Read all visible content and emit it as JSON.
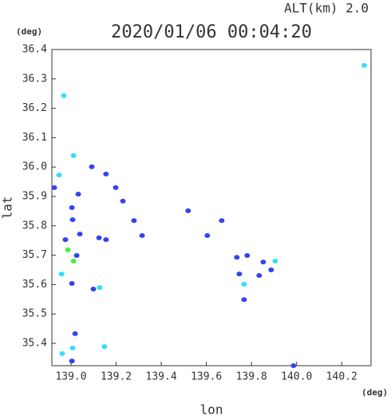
{
  "chart_data": {
    "type": "scatter",
    "title": "2020/01/06 00:04:20",
    "subtitle": "ALT(km) 2.0",
    "x_label": "lon",
    "y_label": "lat",
    "x_unit": "(deg)",
    "y_unit": "(deg)",
    "xlim": [
      138.915,
      140.33
    ],
    "ylim": [
      35.324,
      36.4
    ],
    "xticks": [
      {
        "value": 139.0,
        "label": "139.0"
      },
      139.2,
      139.4,
      139.6,
      139.8,
      {
        "value": 140.0,
        "label": "140.0"
      },
      140.2
    ],
    "yticks": [
      {
        "value": 35.4,
        "label": "35.4"
      },
      35.5,
      35.6,
      35.7,
      35.8,
      35.9,
      {
        "value": 36.0,
        "label": "36.0"
      },
      36.1,
      36.2,
      36.3,
      36.4
    ],
    "series": [
      {
        "color": "#3344ee",
        "x": [
          139.092,
          138.926,
          139.032,
          139.004,
          139.007,
          139.039,
          138.975,
          139.025,
          139.004,
          139.099,
          139.124,
          139.155,
          139.23,
          139.279,
          139.315,
          139.519,
          139.604,
          139.668,
          139.735,
          139.746,
          139.767,
          139.781,
          139.852,
          139.887,
          139.834,
          139.018,
          139.004,
          139.986,
          139.155,
          139.198
        ],
        "y": [
          36.001,
          35.93,
          35.908,
          35.862,
          35.821,
          35.772,
          35.753,
          35.699,
          35.604,
          35.585,
          35.759,
          35.753,
          35.884,
          35.818,
          35.767,
          35.851,
          35.767,
          35.818,
          35.693,
          35.636,
          35.549,
          35.699,
          35.677,
          35.65,
          35.631,
          35.433,
          35.34,
          35.324,
          35.976,
          35.93
        ]
      },
      {
        "color": "#33ddff",
        "x": [
          138.968,
          139.011,
          138.947,
          138.958,
          139.127,
          139.767,
          139.905,
          139.007,
          138.961,
          139.148,
          140.3
        ],
        "y": [
          36.243,
          36.039,
          35.973,
          35.636,
          35.59,
          35.601,
          35.68,
          35.384,
          35.365,
          35.389,
          36.346
        ]
      },
      {
        "color": "#44ee44",
        "x": [
          138.986,
          139.011
        ],
        "y": [
          35.718,
          35.68
        ]
      }
    ]
  }
}
